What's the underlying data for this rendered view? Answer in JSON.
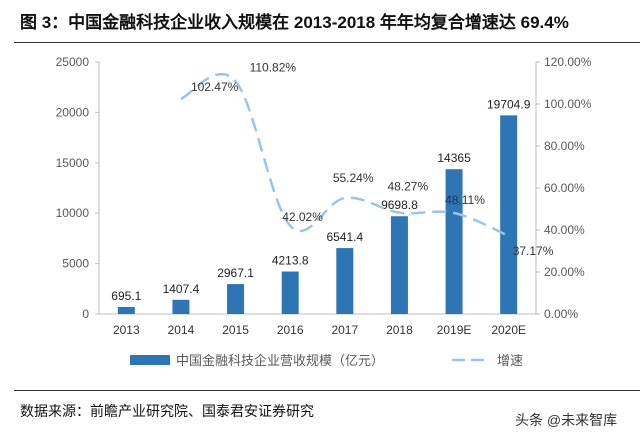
{
  "title": "图 3：中国金融科技企业收入规模在 2013-2018 年年均复合增速达 69.4%",
  "source": "数据来源：前瞻产业研究院、国泰君安证券研究",
  "watermark": "头条 @未来智库",
  "chart_data": {
    "type": "bar+line",
    "categories": [
      "2013",
      "2014",
      "2015",
      "2016",
      "2017",
      "2018",
      "2019E",
      "2020E"
    ],
    "series": [
      {
        "name": "中国金融科技企业营收规模（亿元）",
        "type": "bar",
        "axis": "left",
        "color": "#2e75b6",
        "values": [
          695.1,
          1407.4,
          2967.1,
          4213.8,
          6541.4,
          9698.8,
          14365,
          19704.9
        ],
        "labels": [
          "695.1",
          "1407.4",
          "2967.1",
          "4213.8",
          "6541.4",
          "9698.8",
          "14365",
          "19704.9"
        ]
      },
      {
        "name": "增速",
        "type": "line",
        "style": "dashed-smooth",
        "axis": "right",
        "color": "#9dc3e6",
        "values": [
          null,
          102.47,
          110.82,
          42.02,
          55.24,
          48.27,
          48.11,
          37.17
        ],
        "labels": [
          null,
          "102.47%",
          "110.82%",
          "42.02%",
          "55.24%",
          "48.27%",
          "48.11%",
          "37.17%"
        ]
      }
    ],
    "left_axis": {
      "ylim": [
        0,
        25000
      ],
      "ticks": [
        "0",
        "5000",
        "10000",
        "15000",
        "20000",
        "25000"
      ]
    },
    "right_axis": {
      "ylim": [
        0,
        120
      ],
      "ticks": [
        "0.00%",
        "20.00%",
        "40.00%",
        "60.00%",
        "80.00%",
        "100.00%",
        "120.00%"
      ]
    },
    "grid": false,
    "legend_position": "bottom"
  }
}
